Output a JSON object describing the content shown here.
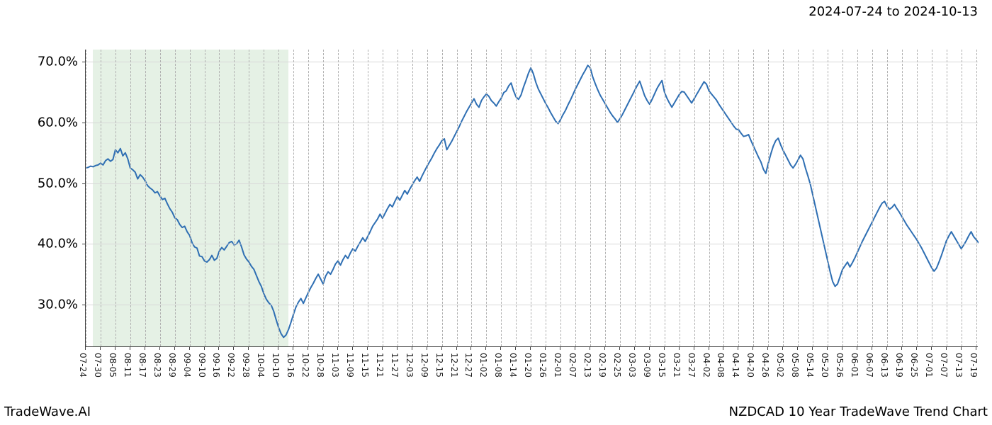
{
  "date_range": "2024-07-24 to 2024-10-13",
  "footer_left": "TradeWave.AI",
  "footer_right": "NZDCAD 10 Year TradeWave Trend Chart",
  "chart": {
    "type": "line",
    "background_color": "#ffffff",
    "line_color": "#2f6fb3",
    "line_width": 2.0,
    "grid_vertical_color": "#b0b0b0",
    "grid_vertical_dash": true,
    "grid_horizontal_color": "#d8d8d8",
    "axis_color": "#444444",
    "highlight_color": "rgba(150,200,150,0.25)",
    "highlight_start_idx": 3,
    "highlight_end_idx": 82,
    "y_label_fontsize": 18,
    "x_label_fontsize": 12,
    "x_label_rotation": 90,
    "ylim": [
      23,
      72
    ],
    "yticks": [
      30,
      40,
      50,
      60,
      70
    ],
    "ytick_labels": [
      "30.0%",
      "40.0%",
      "50.0%",
      "60.0%",
      "70.0%"
    ],
    "xticks_every": 6,
    "x_labels": [
      "07-24",
      "07-30",
      "08-05",
      "08-11",
      "08-17",
      "08-23",
      "08-29",
      "09-04",
      "09-10",
      "09-16",
      "09-22",
      "09-28",
      "10-04",
      "10-10",
      "10-16",
      "10-22",
      "10-28",
      "11-03",
      "11-09",
      "11-15",
      "11-21",
      "11-27",
      "12-03",
      "12-09",
      "12-15",
      "12-21",
      "12-27",
      "01-02",
      "01-08",
      "01-14",
      "01-20",
      "01-26",
      "02-01",
      "02-07",
      "02-13",
      "02-19",
      "02-25",
      "03-03",
      "03-09",
      "03-15",
      "03-21",
      "03-27",
      "04-02",
      "04-08",
      "04-14",
      "04-20",
      "04-26",
      "05-02",
      "05-08",
      "05-14",
      "05-20",
      "05-26",
      "06-01",
      "06-07",
      "06-13",
      "06-19",
      "06-25",
      "07-01",
      "07-07",
      "07-13",
      "07-19"
    ],
    "n_points": 362,
    "values": [
      52.5,
      52.6,
      52.8,
      52.7,
      52.9,
      53.0,
      53.3,
      53.0,
      53.7,
      54.0,
      53.6,
      53.9,
      55.5,
      55.0,
      55.7,
      54.5,
      55.0,
      54.0,
      52.5,
      52.2,
      51.8,
      50.7,
      51.4,
      51.0,
      50.4,
      49.6,
      49.2,
      48.9,
      48.4,
      48.6,
      47.9,
      47.3,
      47.5,
      46.6,
      45.8,
      45.2,
      44.3,
      44.0,
      43.2,
      42.7,
      42.9,
      42.0,
      41.4,
      40.2,
      39.5,
      39.3,
      38.0,
      37.9,
      37.2,
      37.0,
      37.4,
      38.1,
      37.3,
      37.6,
      38.8,
      39.4,
      39.0,
      39.6,
      40.2,
      40.4,
      39.8,
      40.0,
      40.6,
      39.5,
      38.2,
      37.5,
      37.0,
      36.3,
      35.8,
      34.8,
      33.8,
      33.0,
      31.8,
      30.9,
      30.3,
      29.9,
      28.9,
      27.5,
      26.2,
      25.2,
      24.6,
      25.0,
      25.9,
      27.1,
      28.4,
      29.6,
      30.4,
      31.0,
      30.2,
      31.1,
      32.0,
      32.8,
      33.5,
      34.3,
      35.0,
      34.2,
      33.4,
      34.7,
      35.4,
      35.0,
      35.8,
      36.7,
      37.2,
      36.5,
      37.4,
      38.1,
      37.6,
      38.5,
      39.2,
      38.8,
      39.6,
      40.3,
      41.0,
      40.4,
      41.2,
      42.0,
      42.9,
      43.5,
      44.1,
      44.9,
      44.2,
      45.0,
      45.8,
      46.5,
      46.1,
      47.0,
      47.8,
      47.2,
      48.0,
      48.8,
      48.2,
      49.0,
      49.7,
      50.4,
      51.0,
      50.3,
      51.2,
      52.0,
      52.8,
      53.5,
      54.2,
      55.0,
      55.7,
      56.3,
      57.0,
      57.3,
      55.5,
      56.2,
      56.9,
      57.7,
      58.5,
      59.3,
      60.2,
      61.0,
      61.8,
      62.5,
      63.2,
      63.9,
      63.0,
      62.5,
      63.6,
      64.2,
      64.7,
      64.3,
      63.6,
      63.2,
      62.7,
      63.4,
      64.0,
      64.9,
      65.2,
      66.0,
      66.5,
      65.2,
      64.2,
      63.8,
      64.5,
      65.8,
      66.9,
      68.1,
      69.0,
      68.0,
      66.6,
      65.5,
      64.7,
      63.9,
      63.1,
      62.4,
      61.6,
      60.9,
      60.2,
      59.8,
      60.5,
      61.3,
      62.0,
      62.9,
      63.7,
      64.6,
      65.5,
      66.3,
      67.1,
      67.9,
      68.6,
      69.4,
      69.0,
      67.5,
      66.4,
      65.4,
      64.5,
      63.8,
      63.1,
      62.4,
      61.7,
      61.1,
      60.6,
      60.0,
      60.6,
      61.3,
      62.1,
      62.9,
      63.7,
      64.5,
      65.3,
      66.1,
      66.8,
      65.6,
      64.4,
      63.6,
      63.0,
      63.8,
      64.7,
      65.6,
      66.3,
      66.9,
      65.0,
      64.0,
      63.2,
      62.5,
      63.2,
      63.9,
      64.6,
      65.1,
      65.0,
      64.4,
      63.8,
      63.2,
      63.9,
      64.6,
      65.3,
      66.0,
      66.7,
      66.3,
      65.2,
      64.7,
      64.2,
      63.7,
      63.0,
      62.4,
      61.8,
      61.2,
      60.6,
      60.0,
      59.4,
      58.9,
      58.8,
      58.2,
      57.7,
      57.8,
      58.0,
      57.0,
      56.1,
      55.2,
      54.3,
      53.5,
      52.3,
      51.6,
      53.3,
      54.8,
      56.1,
      57.0,
      57.4,
      56.3,
      55.4,
      54.6,
      53.8,
      53.0,
      52.5,
      53.1,
      53.8,
      54.6,
      54.0,
      52.5,
      51.2,
      49.8,
      48.0,
      46.2,
      44.4,
      42.6,
      40.8,
      39.0,
      37.2,
      35.4,
      33.8,
      33.0,
      33.4,
      34.6,
      35.8,
      36.4,
      37.0,
      36.2,
      36.9,
      37.7,
      38.6,
      39.5,
      40.4,
      41.2,
      42.0,
      42.8,
      43.6,
      44.4,
      45.2,
      46.0,
      46.7,
      47.0,
      46.2,
      45.7,
      46.0,
      46.5,
      45.8,
      45.2,
      44.5,
      43.8,
      43.1,
      42.5,
      41.9,
      41.3,
      40.7,
      40.0,
      39.3,
      38.5,
      37.7,
      36.9,
      36.1,
      35.5,
      36.0,
      37.0,
      38.1,
      39.3,
      40.5,
      41.3,
      42.0,
      41.3,
      40.6,
      39.9,
      39.2,
      39.8,
      40.5,
      41.3,
      42.0,
      41.2,
      40.7,
      40.2,
      40.1,
      40.0,
      40.0,
      40.0,
      40.0,
      40.0,
      40.0,
      40.0,
      40.0
    ]
  }
}
